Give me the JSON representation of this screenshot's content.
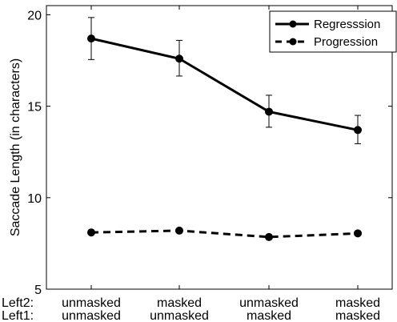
{
  "chart_data": {
    "type": "line",
    "title": "",
    "xlabel": "",
    "ylabel": "Saccade Length (in characters)",
    "ylim": [
      5,
      20.5
    ],
    "yticks": [
      5,
      10,
      15,
      20
    ],
    "row_labels": [
      "Left2:",
      "Left1:"
    ],
    "categories": [
      {
        "left2": "unmasked",
        "left1": "unmasked"
      },
      {
        "left2": "masked",
        "left1": "unmasked"
      },
      {
        "left2": "unmasked",
        "left1": "masked"
      },
      {
        "left2": "masked",
        "left1": "masked"
      }
    ],
    "series": [
      {
        "name": "Regresssion",
        "line_style": "solid",
        "values": [
          18.7,
          17.6,
          14.7,
          13.7
        ],
        "error": [
          [
            17.55,
            19.85
          ],
          [
            16.65,
            18.6
          ],
          [
            13.85,
            15.6
          ],
          [
            12.95,
            14.5
          ]
        ]
      },
      {
        "name": "Progression",
        "line_style": "dashed",
        "values": [
          8.1,
          8.2,
          7.85,
          8.05
        ],
        "error": [
          [
            8.0,
            8.2
          ],
          [
            8.1,
            8.3
          ],
          [
            7.75,
            7.95
          ],
          [
            7.95,
            8.15
          ]
        ]
      }
    ],
    "legend_position": "top-right",
    "grid": false,
    "colors": {
      "line": "#000000",
      "background": "#ffffff"
    }
  }
}
